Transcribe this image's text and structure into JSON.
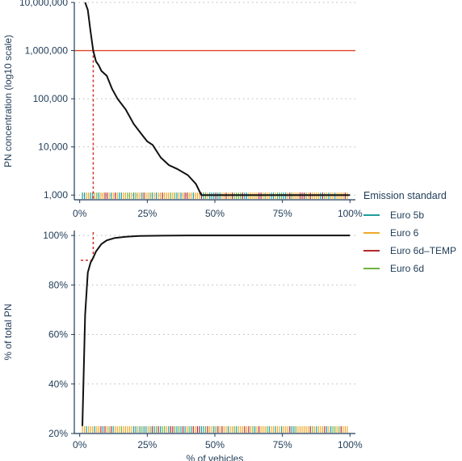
{
  "colors": {
    "axis": "#1f3b57",
    "grid": "#b8b8b8",
    "curve": "#111111",
    "threshold": "#e0452a",
    "marker": "#d22a1e"
  },
  "chart_data": [
    {
      "type": "line",
      "ylabel": "PN concentration (log10 scale)",
      "yscale": "log10",
      "ylim": [
        800,
        10000000
      ],
      "xlim": [
        -2,
        102
      ],
      "x_ticks": [
        "0%",
        "25%",
        "50%",
        "75%",
        "100%"
      ],
      "x_tick_values": [
        0,
        25,
        50,
        75,
        100
      ],
      "y_ticks": [
        "1,000",
        "10,000",
        "100,000",
        "1,000,000",
        "10,000,000"
      ],
      "y_tick_values": [
        1000,
        10000,
        100000,
        1000000,
        10000000
      ],
      "grid": "horizontal dotted",
      "reference_line": {
        "y": 1000000
      },
      "marker_line": {
        "x": 5,
        "y": 1000000
      },
      "series": [
        {
          "x": [
            2,
            3,
            4,
            5,
            6,
            7,
            8,
            10,
            12,
            14,
            17,
            20,
            23,
            25,
            27,
            30,
            33,
            36,
            40,
            43,
            45,
            47,
            50,
            60,
            75,
            100
          ],
          "y": [
            10000000,
            7000000,
            2500000,
            1000000,
            600000,
            500000,
            380000,
            300000,
            160000,
            100000,
            60000,
            30000,
            18000,
            13000,
            11000,
            6000,
            4200,
            3500,
            2600,
            1700,
            1000,
            1000,
            1000,
            1000,
            1000,
            1000
          ]
        }
      ]
    },
    {
      "type": "line",
      "xlabel": "% of vehicles",
      "ylabel": "% of total PN",
      "ylim": [
        20,
        102
      ],
      "xlim": [
        -2,
        102
      ],
      "x_ticks": [
        "0%",
        "25%",
        "50%",
        "75%",
        "100%"
      ],
      "x_tick_values": [
        0,
        25,
        50,
        75,
        100
      ],
      "y_ticks": [
        "20%",
        "40%",
        "60%",
        "80%",
        "100%"
      ],
      "y_tick_values": [
        20,
        40,
        60,
        80,
        100
      ],
      "grid": "horizontal dotted",
      "marker_line": {
        "x": 5,
        "y": 90
      },
      "series": [
        {
          "x": [
            1,
            2,
            3,
            4,
            5,
            6,
            8,
            10,
            13,
            17,
            22,
            30,
            40,
            50,
            60,
            75,
            100
          ],
          "y": [
            23,
            68,
            85,
            89,
            91,
            93.5,
            96.5,
            98,
            99,
            99.5,
            99.8,
            99.9,
            100,
            100,
            100,
            100,
            100
          ]
        }
      ]
    }
  ],
  "legend": {
    "title": "Emission standard",
    "placement": "right",
    "entries": [
      {
        "label": "Euro 5b",
        "color": "#1f9c9c"
      },
      {
        "label": "Euro 6",
        "color": "#f0a928"
      },
      {
        "label": "Euro 6d–TEMP",
        "color": "#b3282f"
      },
      {
        "label": "Euro 6d",
        "color": "#72b23f"
      }
    ]
  }
}
